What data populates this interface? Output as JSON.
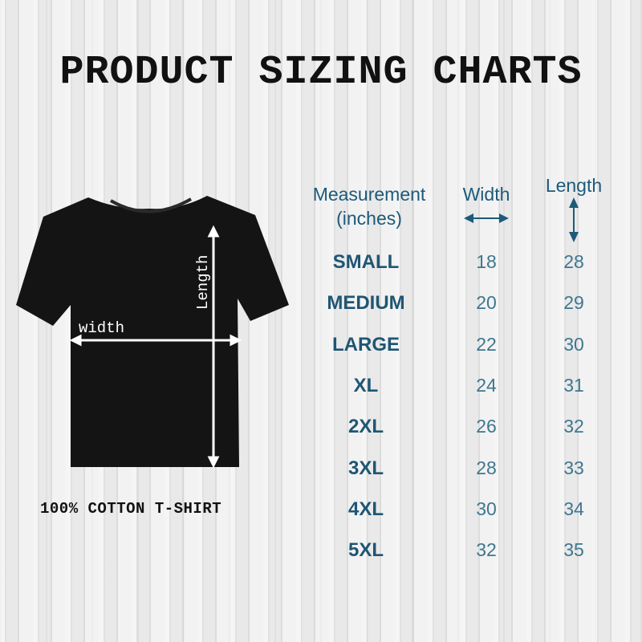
{
  "title": "PRODUCT SIZING CHARTS",
  "shirt": {
    "width_label": "width",
    "length_label": "Length",
    "caption": "100% COTTON T-SHIRT"
  },
  "table": {
    "headers": {
      "measurement": "Measurement",
      "unit": "(inches)",
      "width": "Width",
      "length": "Length"
    },
    "rows": [
      {
        "size": "SMALL",
        "width": "18",
        "length": "28"
      },
      {
        "size": "MEDIUM",
        "width": "20",
        "length": "29"
      },
      {
        "size": "LARGE",
        "width": "22",
        "length": "30"
      },
      {
        "size": "XL",
        "width": "24",
        "length": "31"
      },
      {
        "size": "2XL",
        "width": "26",
        "length": "32"
      },
      {
        "size": "3XL",
        "width": "28",
        "length": "33"
      },
      {
        "size": "4XL",
        "width": "30",
        "length": "34"
      },
      {
        "size": "5XL",
        "width": "32",
        "length": "35"
      }
    ]
  },
  "colors": {
    "header": "#1d5a7a",
    "size_label": "#1f5673",
    "value": "#3f7690",
    "shirt": "#141414"
  }
}
